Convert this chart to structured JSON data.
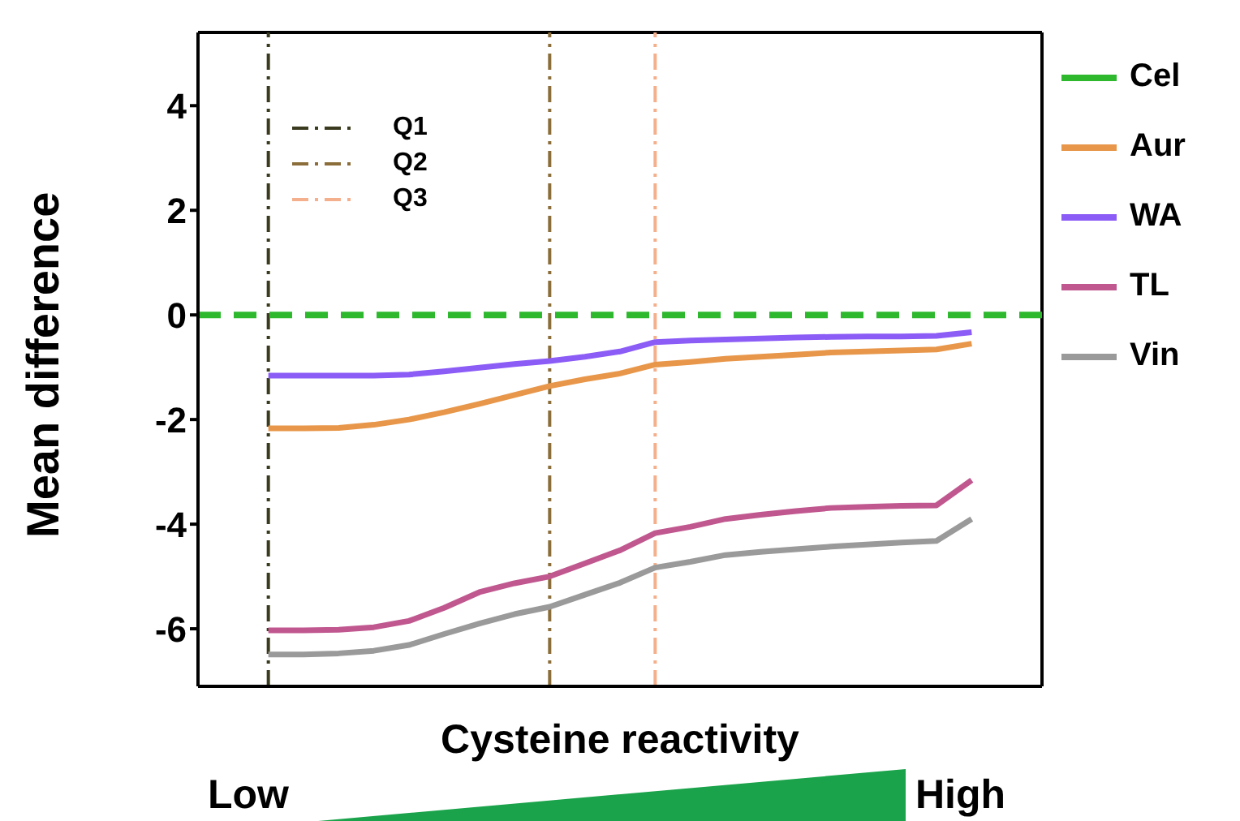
{
  "chart_data": {
    "type": "line",
    "xlabel": "Cysteine reactivity",
    "ylabel": "Mean difference",
    "categories": [
      null,
      null,
      null,
      null,
      null,
      null,
      null,
      null,
      null,
      null,
      null,
      null,
      null,
      null,
      null,
      null,
      null,
      null,
      null,
      null,
      null,
      null,
      null,
      null,
      null
    ],
    "ylim": [
      -7.1,
      5.4
    ],
    "yticks": [
      -6,
      -4,
      -2,
      0,
      2,
      4
    ],
    "tick_labels": "y",
    "grid": false,
    "legend": "right",
    "marker": "none",
    "series": [
      {
        "name": "Cel",
        "color": "#2eb82e",
        "line_style": "dashed",
        "values": [
          0,
          0,
          0,
          0,
          0,
          0,
          0,
          0,
          0,
          0,
          0,
          0,
          0,
          0,
          0,
          0,
          0,
          0,
          0,
          0,
          0,
          0,
          0,
          0,
          0
        ]
      },
      {
        "name": "Aur",
        "color": "#e8974a",
        "values": [
          null,
          null,
          -2.17,
          -2.17,
          -2.16,
          -2.1,
          -2.0,
          -1.86,
          -1.7,
          -1.53,
          -1.36,
          -1.23,
          -1.12,
          -0.95,
          -0.9,
          -0.84,
          -0.8,
          -0.76,
          -0.72,
          -0.7,
          -0.68,
          -0.66,
          -0.55,
          null,
          null
        ]
      },
      {
        "name": "WA",
        "color": "#8b5cf6",
        "values": [
          null,
          null,
          -1.16,
          -1.16,
          -1.16,
          -1.16,
          -1.14,
          -1.08,
          -1.01,
          -0.94,
          -0.88,
          -0.8,
          -0.7,
          -0.52,
          -0.49,
          -0.47,
          -0.45,
          -0.43,
          -0.42,
          -0.41,
          -0.41,
          -0.4,
          -0.33,
          null,
          null
        ]
      },
      {
        "name": "TL",
        "color": "#c0588f",
        "values": [
          null,
          null,
          -6.03,
          -6.03,
          -6.02,
          -5.97,
          -5.85,
          -5.6,
          -5.3,
          -5.13,
          -5.0,
          -4.75,
          -4.5,
          -4.17,
          -4.05,
          -3.9,
          -3.82,
          -3.75,
          -3.69,
          -3.67,
          -3.65,
          -3.64,
          -3.16,
          null,
          null
        ]
      },
      {
        "name": "Vin",
        "color": "#9a9a9a",
        "values": [
          null,
          null,
          -6.49,
          -6.49,
          -6.47,
          -6.42,
          -6.31,
          -6.1,
          -5.9,
          -5.72,
          -5.58,
          -5.35,
          -5.12,
          -4.83,
          -4.72,
          -4.59,
          -4.53,
          -4.48,
          -4.43,
          -4.39,
          -4.35,
          -4.32,
          -3.9,
          null,
          null
        ]
      }
    ],
    "annotations": [
      "Q1",
      "Q2",
      "Q3",
      "Low",
      "High"
    ]
  }
}
